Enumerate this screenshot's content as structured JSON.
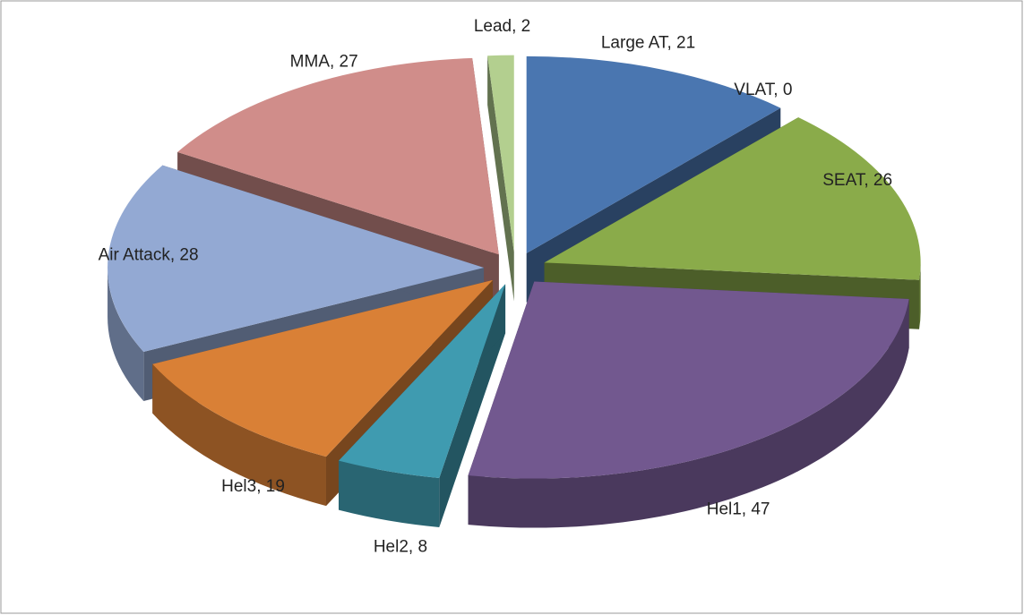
{
  "chart_data": {
    "type": "pie3d",
    "values": [
      21,
      0,
      26,
      47,
      8,
      19,
      28,
      27,
      2
    ],
    "value_labels": [
      "Large AT, 21",
      "VLAT, 0",
      "SEAT, 26",
      "Hel1, 47",
      "Hel2, 8",
      "Hel3, 19",
      "Air Attack, 28",
      "MMA, 27",
      "Lead, 2"
    ],
    "colors": [
      "#4a76b0",
      "#8b2f2f",
      "#8aab4a",
      "#72588f",
      "#3f9bb0",
      "#d98036",
      "#93a9d3",
      "#d08d8a",
      "#b3cf8f"
    ]
  }
}
